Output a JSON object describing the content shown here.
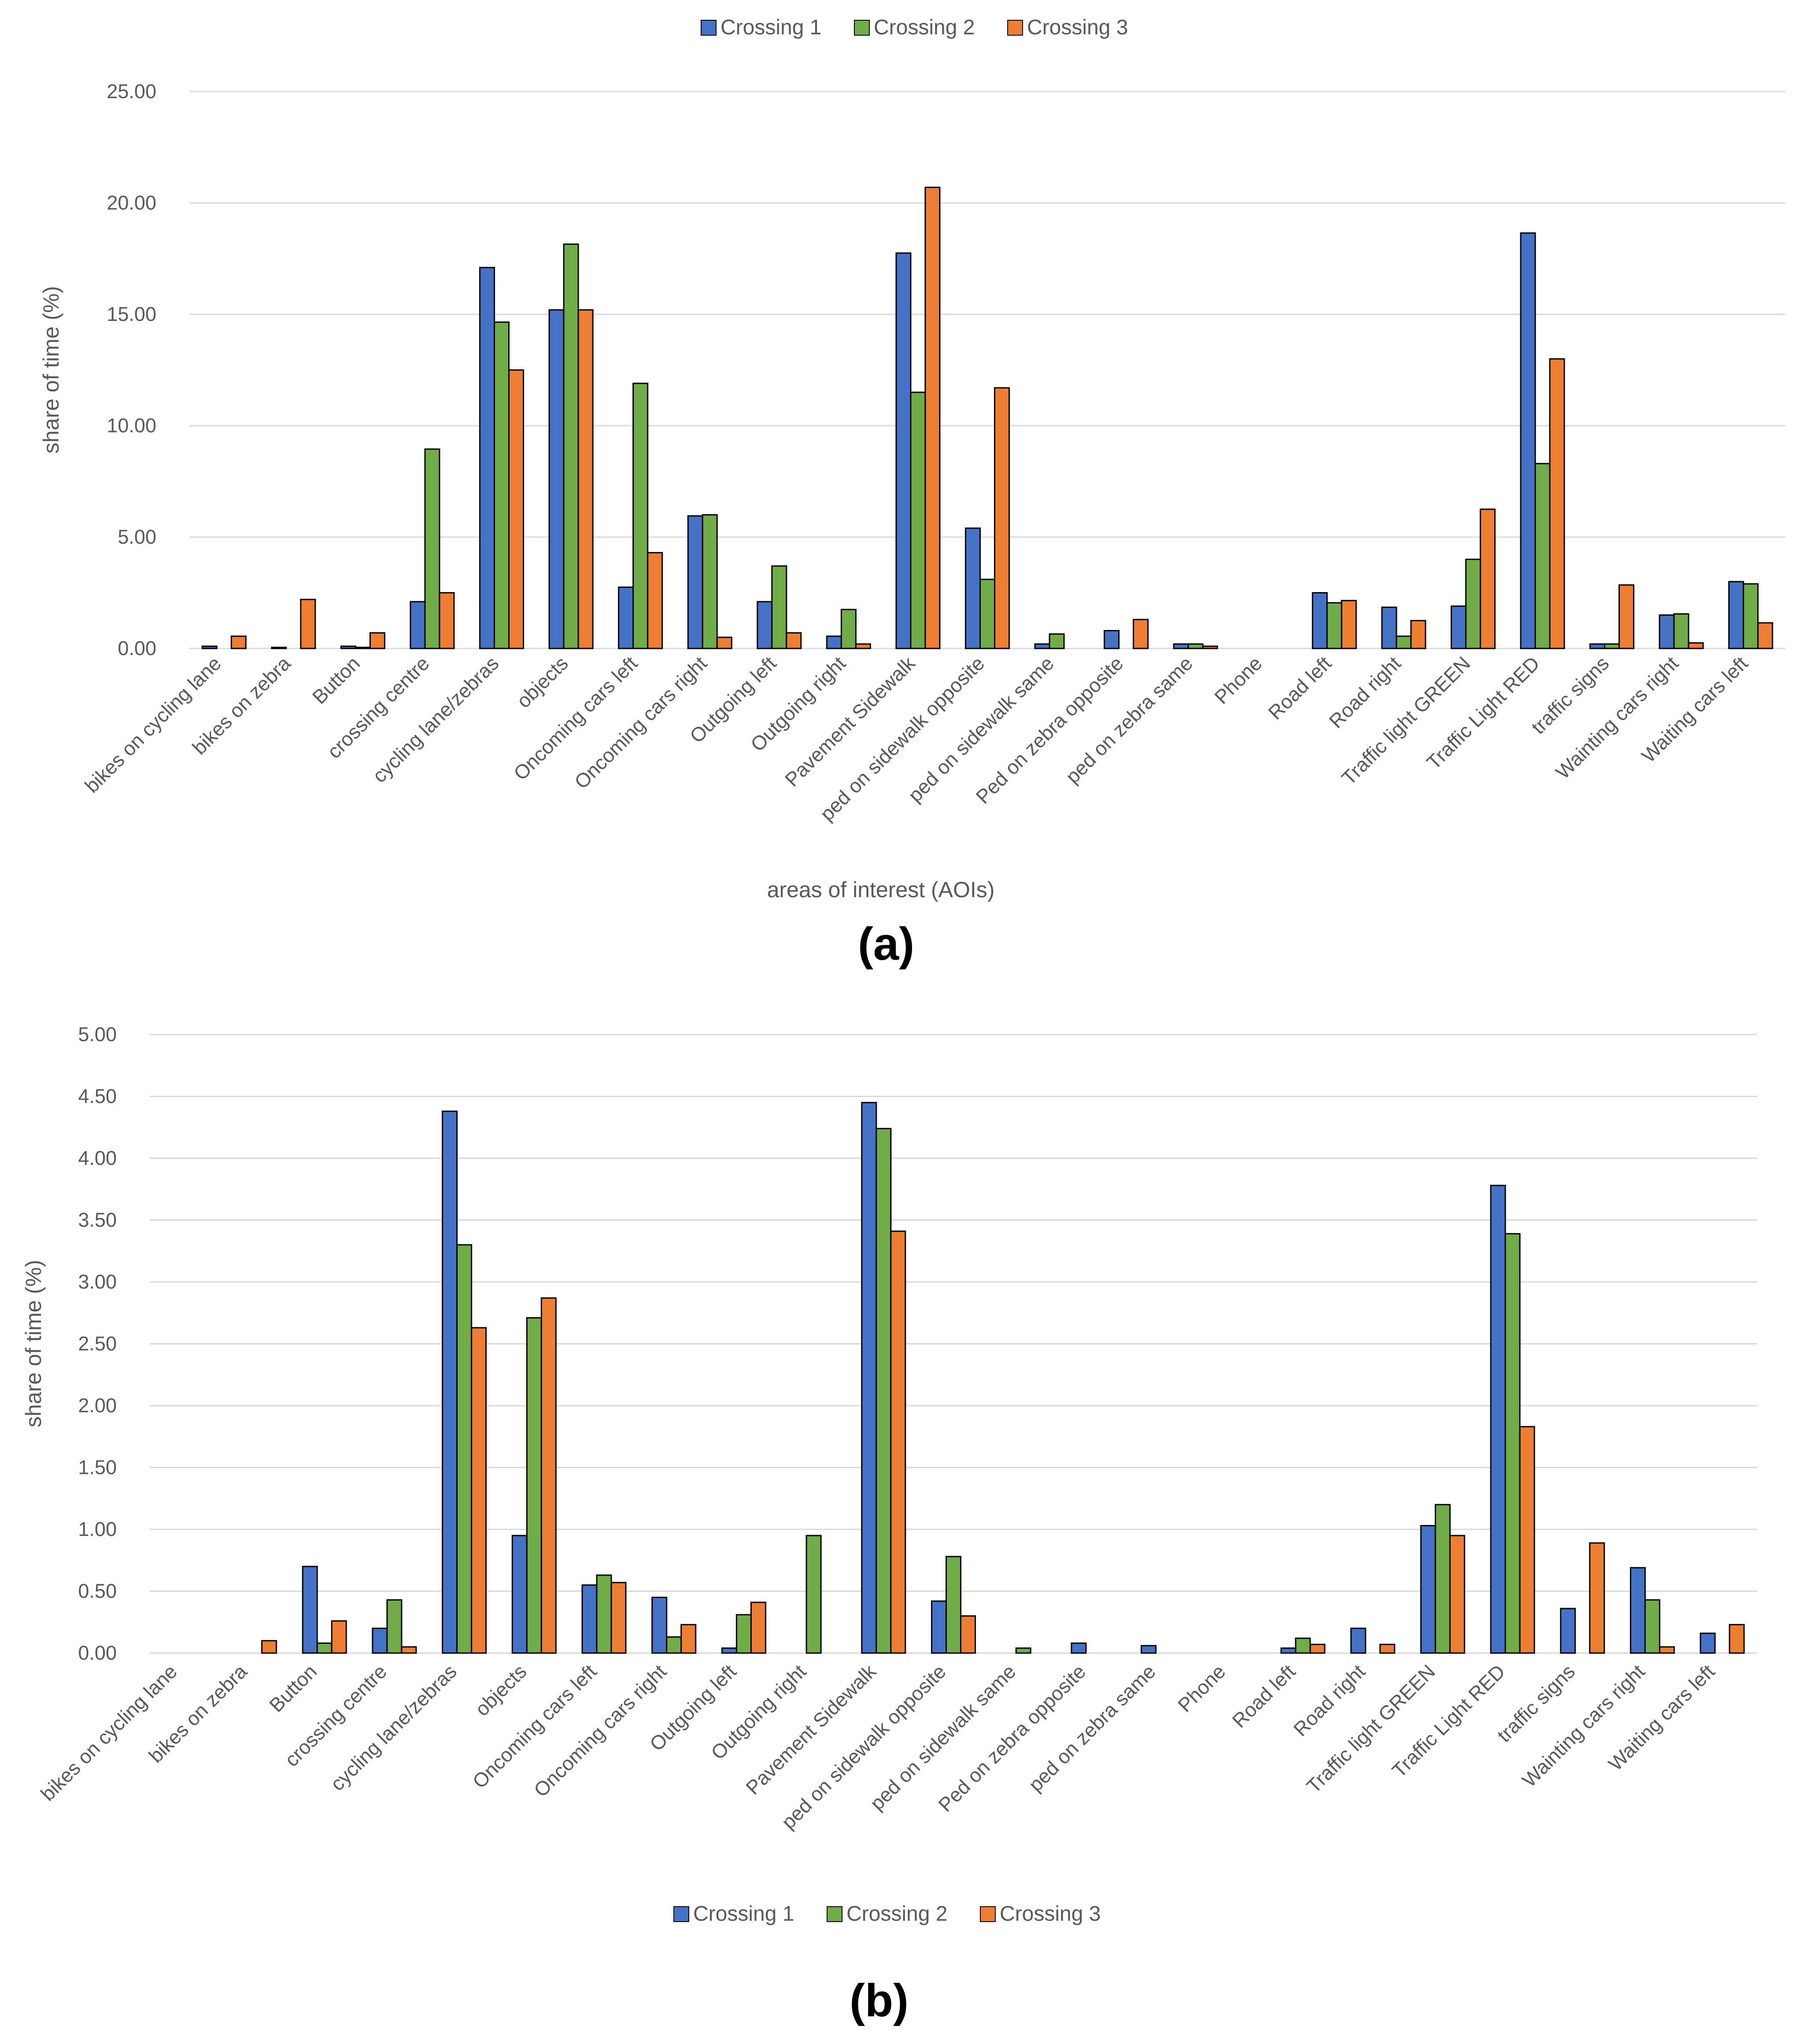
{
  "colors": {
    "crossing1": "#4472C4",
    "crossing2": "#70AD47",
    "crossing3": "#ED7D31",
    "gridline": "#D9D9D9",
    "bar_outline": "#000000"
  },
  "chart_data": [
    {
      "type": "bar",
      "panel_label": "(a)",
      "xlabel": "areas of interest (AOIs)",
      "ylabel": "share of time (%)",
      "ylim": [
        0,
        25
      ],
      "yticks": [
        "0.00",
        "5.00",
        "10.00",
        "15.00",
        "20.00",
        "25.00"
      ],
      "legend": {
        "position": "top",
        "entries": [
          "Crossing 1",
          "Crossing 2",
          "Crossing 3"
        ]
      },
      "categories": [
        "bikes on cycling lane",
        "bikes on zebra",
        "Button",
        "crossing centre",
        "cycling lane/zebras",
        "objects",
        "Oncoming cars left",
        "Oncoming cars right",
        "Outgoing left",
        "Outgoing right",
        "Pavement Sidewalk",
        "ped on sidewalk opposite",
        "ped on sidewalk same",
        "Ped on zebra opposite",
        "ped on zebra same",
        "Phone",
        "Road left",
        "Road right",
        "Traffic light GREEN",
        "Traffic Light RED",
        "traffic signs",
        "Wainting cars right",
        "Waiting cars left"
      ],
      "series": [
        {
          "name": "Crossing 1",
          "values": [
            0.1,
            0.05,
            0.1,
            2.1,
            17.1,
            15.2,
            2.75,
            5.95,
            2.1,
            0.55,
            17.75,
            5.4,
            0.2,
            0.8,
            0.2,
            0,
            2.5,
            1.85,
            1.9,
            18.65,
            0.2,
            1.5,
            3.0
          ]
        },
        {
          "name": "Crossing 2",
          "values": [
            0,
            0,
            0.05,
            8.95,
            14.65,
            18.15,
            11.9,
            6.0,
            3.7,
            1.75,
            11.5,
            3.1,
            0.65,
            0,
            0.2,
            0,
            2.05,
            0.55,
            4.0,
            8.3,
            0.2,
            1.55,
            2.9
          ]
        },
        {
          "name": "Crossing 3",
          "values": [
            0.55,
            2.2,
            0.7,
            2.5,
            12.5,
            15.2,
            4.3,
            0.5,
            0.7,
            0.2,
            20.7,
            11.7,
            0,
            1.3,
            0.1,
            0,
            2.15,
            1.25,
            6.25,
            13.0,
            2.85,
            0.25,
            1.15
          ]
        }
      ]
    },
    {
      "type": "bar",
      "panel_label": "(b)",
      "xlabel": "",
      "ylabel": "share of time (%)",
      "ylim": [
        0,
        5
      ],
      "yticks": [
        "0.00",
        "0.50",
        "1.00",
        "1.50",
        "2.00",
        "2.50",
        "3.00",
        "3.50",
        "4.00",
        "4.50",
        "5.00"
      ],
      "legend": {
        "position": "bottom",
        "entries": [
          "Crossing 1",
          "Crossing 2",
          "Crossing 3"
        ]
      },
      "categories": [
        "bikes on cycling lane",
        "bikes on zebra",
        "Button",
        "crossing centre",
        "cycling lane/zebras",
        "objects",
        "Oncoming cars left",
        "Oncoming cars right",
        "Outgoing left",
        "Outgoing right",
        "Pavement Sidewalk",
        "ped on sidewalk opposite",
        "ped on sidewalk same",
        "Ped on zebra opposite",
        "ped on zebra same",
        "Phone",
        "Road left",
        "Road right",
        "Traffic light GREEN",
        "Traffic Light RED",
        "traffic signs",
        "Wainting cars right",
        "Waiting cars left"
      ],
      "series": [
        {
          "name": "Crossing 1",
          "values": [
            0,
            0,
            0.7,
            0.2,
            4.38,
            0.95,
            0.55,
            0.45,
            0.04,
            0,
            4.45,
            0.42,
            0,
            0.08,
            0.06,
            0,
            0.04,
            0.2,
            1.03,
            3.78,
            0.36,
            0.69,
            0.16
          ]
        },
        {
          "name": "Crossing 2",
          "values": [
            0,
            0,
            0.08,
            0.43,
            3.3,
            2.71,
            0.63,
            0.13,
            0.31,
            0.95,
            4.24,
            0.78,
            0.04,
            0,
            0,
            0,
            0.12,
            0,
            1.2,
            3.39,
            0,
            0.43,
            0
          ]
        },
        {
          "name": "Crossing 3",
          "values": [
            0,
            0.1,
            0.26,
            0.05,
            2.63,
            2.87,
            0.57,
            0.23,
            0.41,
            0,
            3.41,
            0.3,
            0,
            0,
            0,
            0,
            0.07,
            0.07,
            0.95,
            1.83,
            0.89,
            0.05,
            0.23
          ]
        }
      ]
    }
  ]
}
